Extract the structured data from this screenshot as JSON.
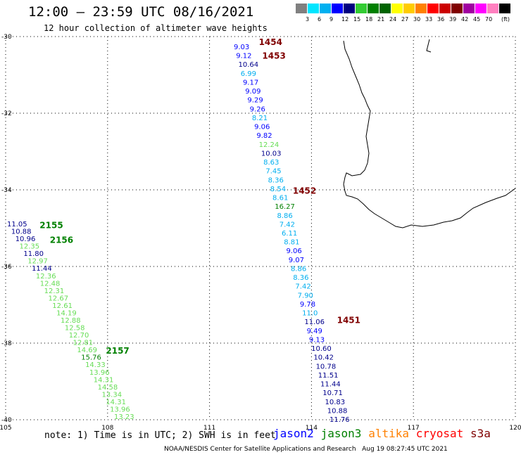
{
  "title": "12:00 – 23:59 UTC 08/16/2021",
  "subtitle": "12 hour collection of altimeter wave heights",
  "legend": {
    "unit": "(ft)",
    "bins": [
      {
        "color": "#808080",
        "label": ""
      },
      {
        "color": "#00e5ff",
        "label": "3"
      },
      {
        "color": "#00b0f0",
        "label": "6"
      },
      {
        "color": "#0000ff",
        "label": "9"
      },
      {
        "color": "#000080",
        "label": "12"
      },
      {
        "color": "#33cc33",
        "label": "15"
      },
      {
        "color": "#008000",
        "label": "18"
      },
      {
        "color": "#006400",
        "label": "21"
      },
      {
        "color": "#ffff00",
        "label": "24"
      },
      {
        "color": "#ffcc00",
        "label": "27"
      },
      {
        "color": "#ff8000",
        "label": "30"
      },
      {
        "color": "#ff0000",
        "label": "33"
      },
      {
        "color": "#cc0000",
        "label": "36"
      },
      {
        "color": "#800000",
        "label": "39"
      },
      {
        "color": "#a000a0",
        "label": "42"
      },
      {
        "color": "#ff00ff",
        "label": "45"
      },
      {
        "color": "#ff80c0",
        "label": "70"
      },
      {
        "color": "#000000",
        "label": ""
      }
    ]
  },
  "axes": {
    "lon_ticks": [
      "105",
      "108",
      "111",
      "114",
      "117",
      "120"
    ],
    "lat_ticks": [
      "-30",
      "-32",
      "-34",
      "-36",
      "-38",
      "-40"
    ]
  },
  "tracks": [
    {
      "satellite": "jason3",
      "pass_times": [
        {
          "text": "2155",
          "lon": 106.0,
          "lat": -34.93,
          "color": "#008000"
        },
        {
          "text": "2156",
          "lon": 106.3,
          "lat": -35.31,
          "color": "#008000"
        },
        {
          "text": "2157",
          "lon": 107.95,
          "lat": -38.2,
          "color": "#008000"
        }
      ],
      "points": [
        {
          "v": "11.05",
          "color": "#00008b"
        },
        {
          "v": "10.88",
          "color": "#00008b"
        },
        {
          "v": "10.96",
          "color": "#00008b"
        },
        {
          "v": "12.35",
          "color": "#66dd55"
        },
        {
          "v": "11.80",
          "color": "#00008b"
        },
        {
          "v": "12.97",
          "color": "#66dd55"
        },
        {
          "v": "11.44",
          "color": "#00008b"
        },
        {
          "v": "12.36",
          "color": "#66dd55"
        },
        {
          "v": "12.48",
          "color": "#66dd55"
        },
        {
          "v": "12.31",
          "color": "#66dd55"
        },
        {
          "v": "12.67",
          "color": "#66dd55"
        },
        {
          "v": "12.61",
          "color": "#66dd55"
        },
        {
          "v": "14.19",
          "color": "#66dd55"
        },
        {
          "v": "12.88",
          "color": "#66dd55"
        },
        {
          "v": "12.58",
          "color": "#66dd55"
        },
        {
          "v": "12.70",
          "color": "#66dd55"
        },
        {
          "v": "12.81",
          "color": "#66dd55"
        },
        {
          "v": "14.69",
          "color": "#66dd55"
        },
        {
          "v": "15.76",
          "color": "#008000"
        },
        {
          "v": "14.33",
          "color": "#66dd55"
        },
        {
          "v": "13.96",
          "color": "#66dd55"
        },
        {
          "v": "14.31",
          "color": "#66dd55"
        },
        {
          "v": "14.58",
          "color": "#66dd55"
        },
        {
          "v": "13.34",
          "color": "#66dd55"
        },
        {
          "v": "14.31",
          "color": "#66dd55"
        },
        {
          "v": "13.96",
          "color": "#66dd55"
        },
        {
          "v": "13.23",
          "color": "#66dd55"
        }
      ]
    },
    {
      "satellite": "s3a",
      "pass_times": [
        {
          "text": "1454",
          "lon": 112.45,
          "lat": -30.15,
          "color": "#800000"
        },
        {
          "text": "1453",
          "lon": 112.55,
          "lat": -30.5,
          "color": "#800000"
        },
        {
          "text": "1452",
          "lon": 113.45,
          "lat": -34.03,
          "color": "#800000"
        },
        {
          "text": "1451",
          "lon": 114.75,
          "lat": -37.4,
          "color": "#800000"
        }
      ],
      "points": [
        {
          "v": "9.03",
          "color": "#0000ff"
        },
        {
          "v": "9.12",
          "color": "#0000ff"
        },
        {
          "v": "10.64",
          "color": "#00008b"
        },
        {
          "v": "6.99",
          "color": "#00aeef"
        },
        {
          "v": "9.17",
          "color": "#0000ff"
        },
        {
          "v": "9.09",
          "color": "#0000ff"
        },
        {
          "v": "9.29",
          "color": "#0000ff"
        },
        {
          "v": "9.26",
          "color": "#0000ff"
        },
        {
          "v": "8.21",
          "color": "#00aeef"
        },
        {
          "v": "9.06",
          "color": "#0000ff"
        },
        {
          "v": "9.82",
          "color": "#0000ff"
        },
        {
          "v": "12.24",
          "color": "#66dd55"
        },
        {
          "v": "10.03",
          "color": "#00008b"
        },
        {
          "v": "8.63",
          "color": "#00aeef"
        },
        {
          "v": "7.45",
          "color": "#00aeef"
        },
        {
          "v": "8.36",
          "color": "#00aeef"
        },
        {
          "v": "8.54",
          "color": "#00aeef"
        },
        {
          "v": "8.61",
          "color": "#00aeef"
        },
        {
          "v": "16.27",
          "color": "#008000"
        },
        {
          "v": "8.86",
          "color": "#00aeef"
        },
        {
          "v": "7.42",
          "color": "#00aeef"
        },
        {
          "v": "6.11",
          "color": "#00aeef"
        },
        {
          "v": "8.81",
          "color": "#00aeef"
        },
        {
          "v": "9.06",
          "color": "#0000ff"
        },
        {
          "v": "9.07",
          "color": "#0000ff"
        },
        {
          "v": "8.86",
          "color": "#00aeef"
        },
        {
          "v": "8.36",
          "color": "#00aeef"
        },
        {
          "v": "7.42",
          "color": "#00aeef"
        },
        {
          "v": "7.90",
          "color": "#00aeef"
        },
        {
          "v": "9.78",
          "color": "#0000ff"
        },
        {
          "v": "11.0",
          "color": "#00aeef"
        },
        {
          "v": "11.06",
          "color": "#00008b"
        },
        {
          "v": "9.49",
          "color": "#0000ff"
        },
        {
          "v": "9.13",
          "color": "#0000ff"
        },
        {
          "v": "10.60",
          "color": "#00008b"
        },
        {
          "v": "10.42",
          "color": "#00008b"
        },
        {
          "v": "10.78",
          "color": "#00008b"
        },
        {
          "v": "11.51",
          "color": "#00008b"
        },
        {
          "v": "11.44",
          "color": "#00008b"
        },
        {
          "v": "10.71",
          "color": "#00008b"
        },
        {
          "v": "10.83",
          "color": "#00008b"
        },
        {
          "v": "10.88",
          "color": "#00008b"
        },
        {
          "v": "11.76",
          "color": "#00008b"
        }
      ]
    }
  ],
  "note": "note: 1) Time is in UTC; 2) SWH is in feet",
  "satellites": [
    {
      "name": "jason2",
      "color": "#0000ff"
    },
    {
      "name": "jason3",
      "color": "#008000"
    },
    {
      "name": "altika",
      "color": "#ff8000"
    },
    {
      "name": "cryosat",
      "color": "#ff0000"
    },
    {
      "name": "s3a",
      "color": "#800000"
    }
  ],
  "footer": "NOAA/NESDIS Center for Satellite Applications and Research   Aug 19 08:27:45 UTC 2021"
}
